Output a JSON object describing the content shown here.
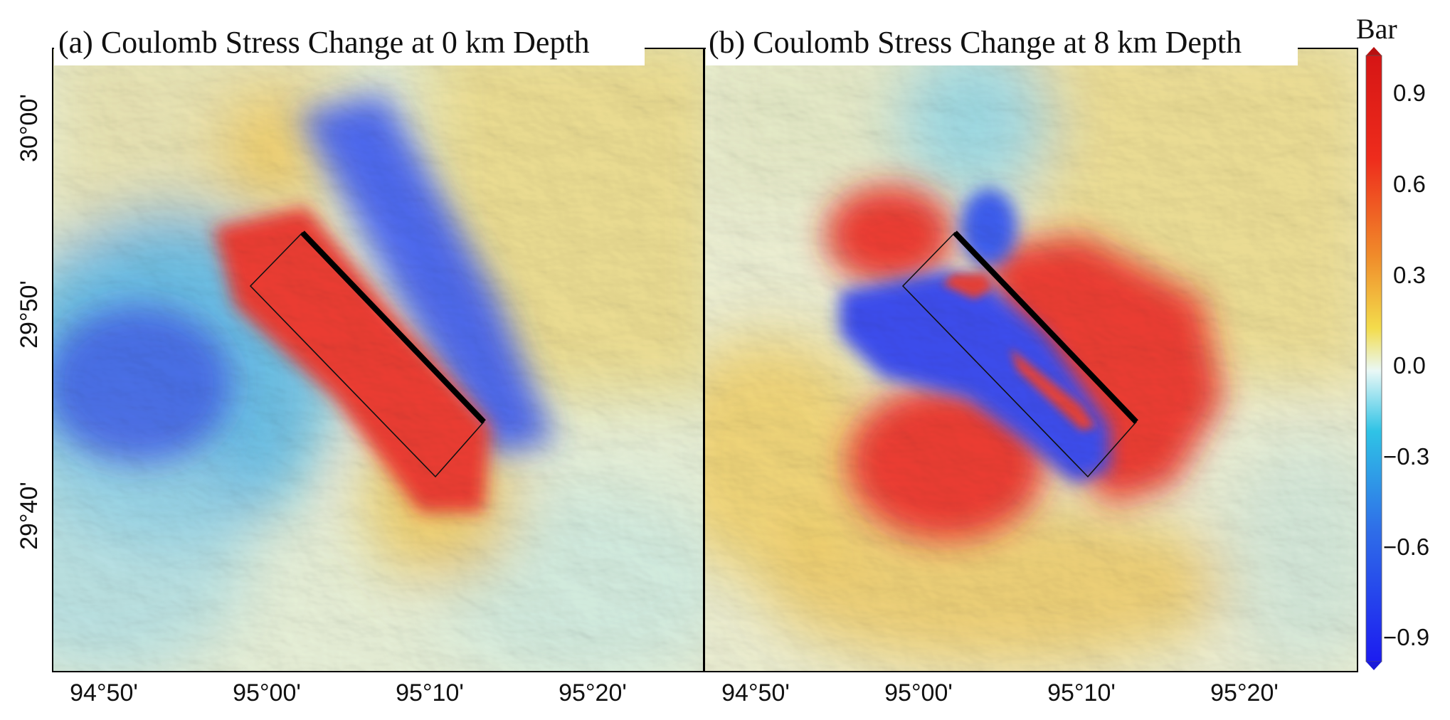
{
  "figure": {
    "colors": {
      "neg_strong": "#1f2df0",
      "neg_mid": "#2fb7ea",
      "zero": "#eaf7f6",
      "pos_mid": "#f2c23a",
      "pos_strong": "#ec2a1c",
      "terrain_pos": "#e9d68a",
      "terrain_neg": "#bfe3e2",
      "frame": "#000000"
    },
    "panels": [
      {
        "id": "a",
        "title": "(a) Coulomb Stress Change at 0 km Depth",
        "depth_km": 0
      },
      {
        "id": "b",
        "title": "(b) Coulomb Stress Change at 8 km Depth",
        "depth_km": 8
      }
    ],
    "x_ticks": [
      "94°50'",
      "95°00'",
      "95°10'",
      "95°20'"
    ],
    "y_ticks": [
      "30°00'",
      "29°50'",
      "29°40'"
    ],
    "colorbar": {
      "label": "Bar",
      "ticks": [
        "0.9",
        "0.6",
        "0.3",
        "0.0",
        "−0.3",
        "−0.6",
        "−0.9"
      ],
      "range": [
        -1.0,
        1.0
      ]
    }
  }
}
